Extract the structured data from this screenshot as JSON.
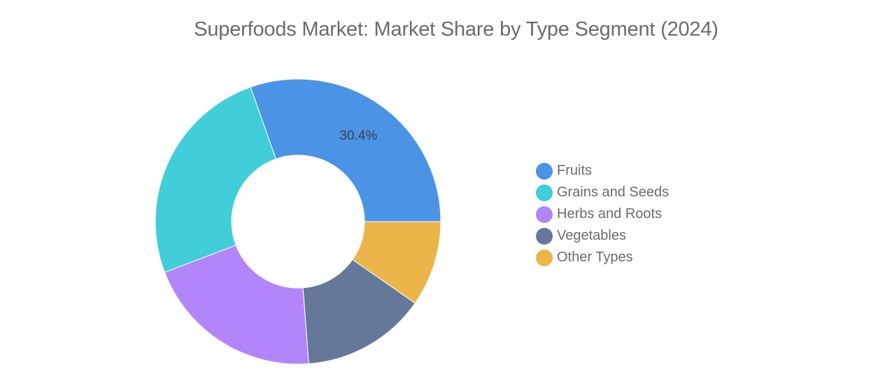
{
  "chart_data": {
    "type": "pie",
    "donut": true,
    "title": "Superfoods Market: Market Share by Type Segment (2024)",
    "legend_position": "right",
    "slices": [
      {
        "name": "Fruits",
        "value": 30.4,
        "color": "#4b93e4",
        "label": "30.4%"
      },
      {
        "name": "Grains and Seeds",
        "value": 25.4,
        "color": "#41ced9",
        "label": ""
      },
      {
        "name": "Herbs and Roots",
        "value": 20.4,
        "color": "#b285fb",
        "label": ""
      },
      {
        "name": "Vegetables",
        "value": 14.1,
        "color": "#657899",
        "label": ""
      },
      {
        "name": "Other Types",
        "value": 9.7,
        "color": "#ebb54a",
        "label": ""
      }
    ]
  }
}
